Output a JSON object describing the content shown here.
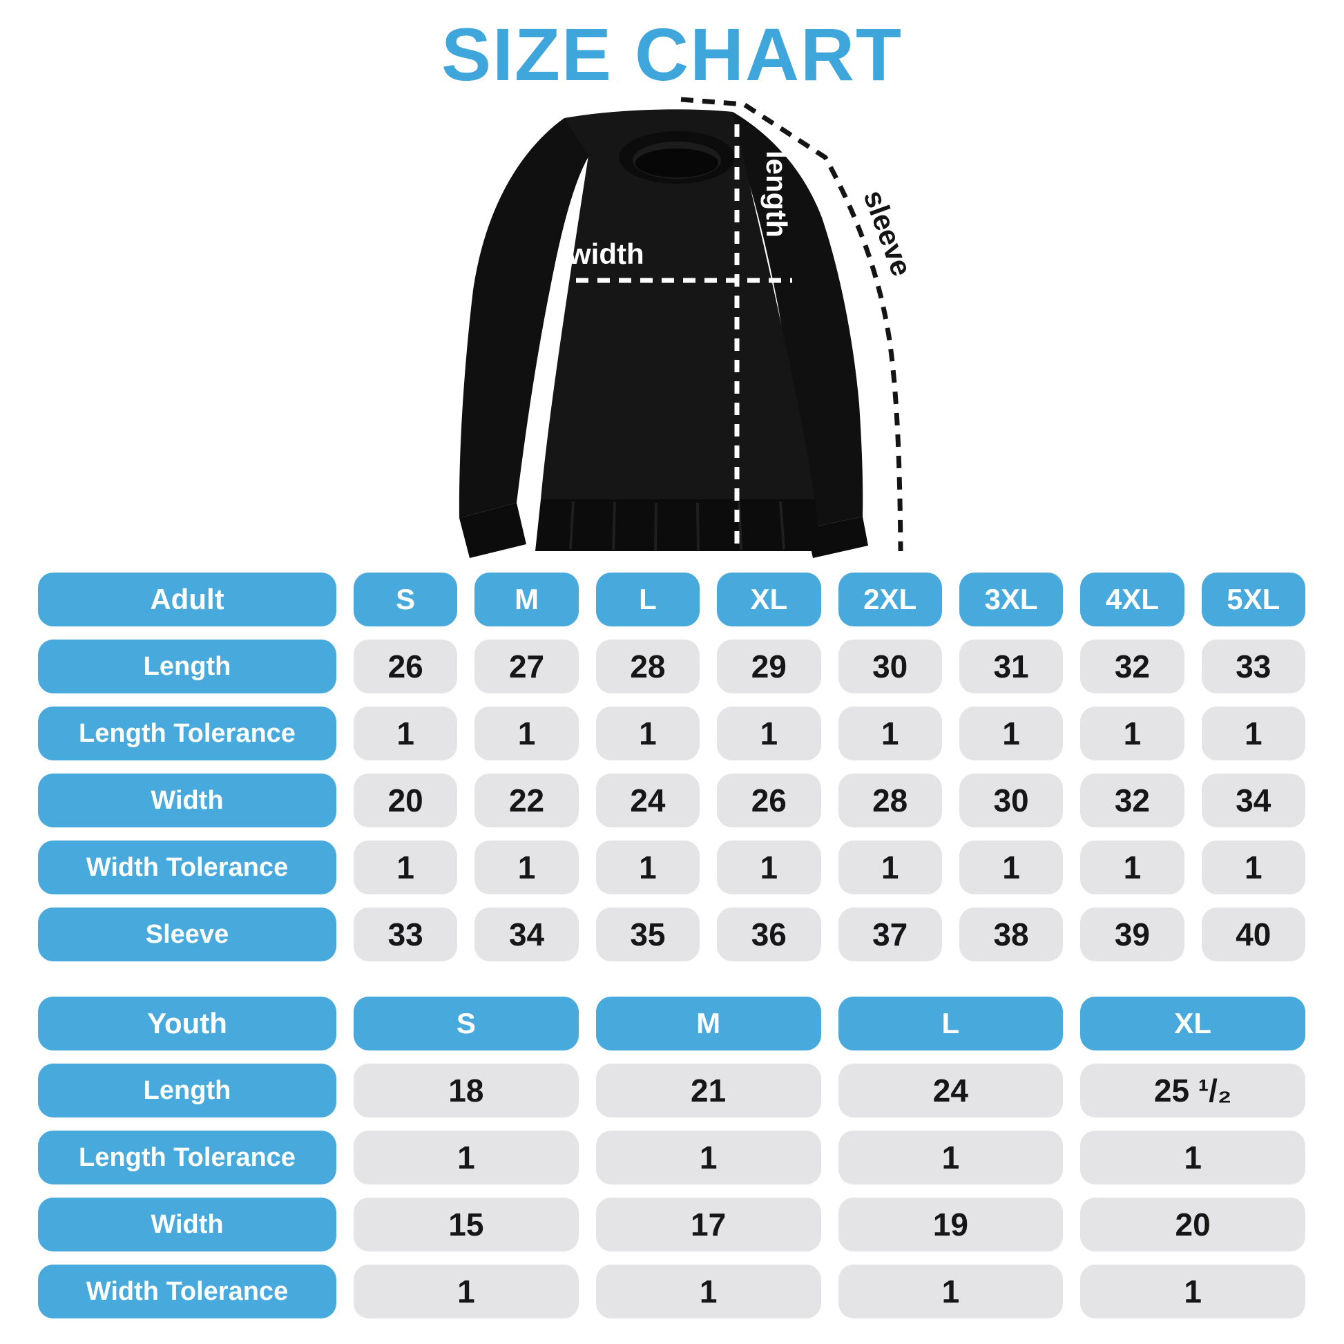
{
  "title": "SIZE CHART",
  "colors": {
    "accent": "#48A9DC",
    "title": "#3FA6DB",
    "pill_gray": "#E4E4E6",
    "value_text": "#161616",
    "fabric": "#141414"
  },
  "diagram": {
    "length_label": "length",
    "width_label": "width",
    "sleeve_label": "sleeve"
  },
  "adult_table": {
    "header": [
      "Adult",
      "S",
      "M",
      "L",
      "XL",
      "2XL",
      "3XL",
      "4XL",
      "5XL"
    ],
    "rows": [
      {
        "label": "Length",
        "values": [
          "26",
          "27",
          "28",
          "29",
          "30",
          "31",
          "32",
          "33"
        ]
      },
      {
        "label": "Length Tolerance",
        "values": [
          "1",
          "1",
          "1",
          "1",
          "1",
          "1",
          "1",
          "1"
        ]
      },
      {
        "label": "Width",
        "values": [
          "20",
          "22",
          "24",
          "26",
          "28",
          "30",
          "32",
          "34"
        ]
      },
      {
        "label": "Width Tolerance",
        "values": [
          "1",
          "1",
          "1",
          "1",
          "1",
          "1",
          "1",
          "1"
        ]
      },
      {
        "label": "Sleeve",
        "values": [
          "33",
          "34",
          "35",
          "36",
          "37",
          "38",
          "39",
          "40"
        ]
      }
    ]
  },
  "youth_table": {
    "header": [
      "Youth",
      "S",
      "M",
      "L",
      "XL"
    ],
    "rows": [
      {
        "label": "Length",
        "values": [
          "18",
          "21",
          "24",
          "25 ¹/₂"
        ]
      },
      {
        "label": "Length Tolerance",
        "values": [
          "1",
          "1",
          "1",
          "1"
        ]
      },
      {
        "label": "Width",
        "values": [
          "15",
          "17",
          "19",
          "20"
        ]
      },
      {
        "label": "Width Tolerance",
        "values": [
          "1",
          "1",
          "1",
          "1"
        ]
      }
    ]
  }
}
